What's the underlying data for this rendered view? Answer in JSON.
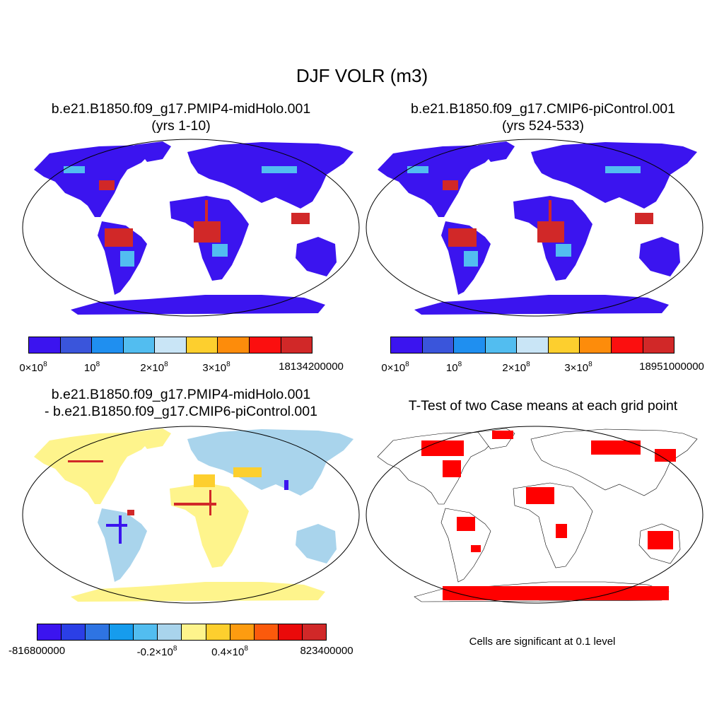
{
  "main_title": "DJF VOLR (m3)",
  "panels": [
    {
      "title_line1": "b.e21.B1850.f09_g17.PMIP4-midHolo.001",
      "title_line2": "(yrs 1-10)",
      "map": "volr-map-midholo",
      "colorbar": {
        "colors": [
          "#3b14ef",
          "#3a55db",
          "#1f8ff0",
          "#52bdf0",
          "#c9e5f6",
          "#fdcf2e",
          "#fd8c0b",
          "#fb0f0f",
          "#d12828"
        ],
        "labels": [
          "0×10",
          "10",
          "2×10",
          "3×10",
          "18134200000"
        ],
        "label_exponent": "8"
      }
    },
    {
      "title_line1": "b.e21.B1850.f09_g17.CMIP6-piControl.001",
      "title_line2": "(yrs 524-533)",
      "map": "volr-map-picontrol",
      "colorbar": {
        "colors": [
          "#3b14ef",
          "#3a55db",
          "#1f8ff0",
          "#52bdf0",
          "#c9e5f6",
          "#fdcf2e",
          "#fd8c0b",
          "#fb0f0f",
          "#d12828"
        ],
        "labels": [
          "0×10",
          "10",
          "2×10",
          "3×10",
          "18951000000"
        ],
        "label_exponent": "8"
      }
    },
    {
      "title_line1": "b.e21.B1850.f09_g17.PMIP4-midHolo.001",
      "title_line2": "- b.e21.B1850.f09_g17.CMIP6-piControl.001",
      "map": "volr-difference-map",
      "colorbar": {
        "colors": [
          "#3b14ef",
          "#2b3fe6",
          "#2e74e3",
          "#169ced",
          "#52bdf0",
          "#a9d4ec",
          "#fef48c",
          "#fdcf2e",
          "#fd9c10",
          "#fb5a0c",
          "#ea0a0a",
          "#d12828"
        ],
        "labels": [
          "-816800000",
          "-0.2×10",
          "0.4×10",
          "823400000"
        ],
        "label_exponent": "8"
      }
    },
    {
      "title_line1": "T-Test of two Case means at each grid point",
      "map": "significance-map",
      "note": "Cells are significant at 0.1 level",
      "sig_color": "#ff0000"
    }
  ]
}
